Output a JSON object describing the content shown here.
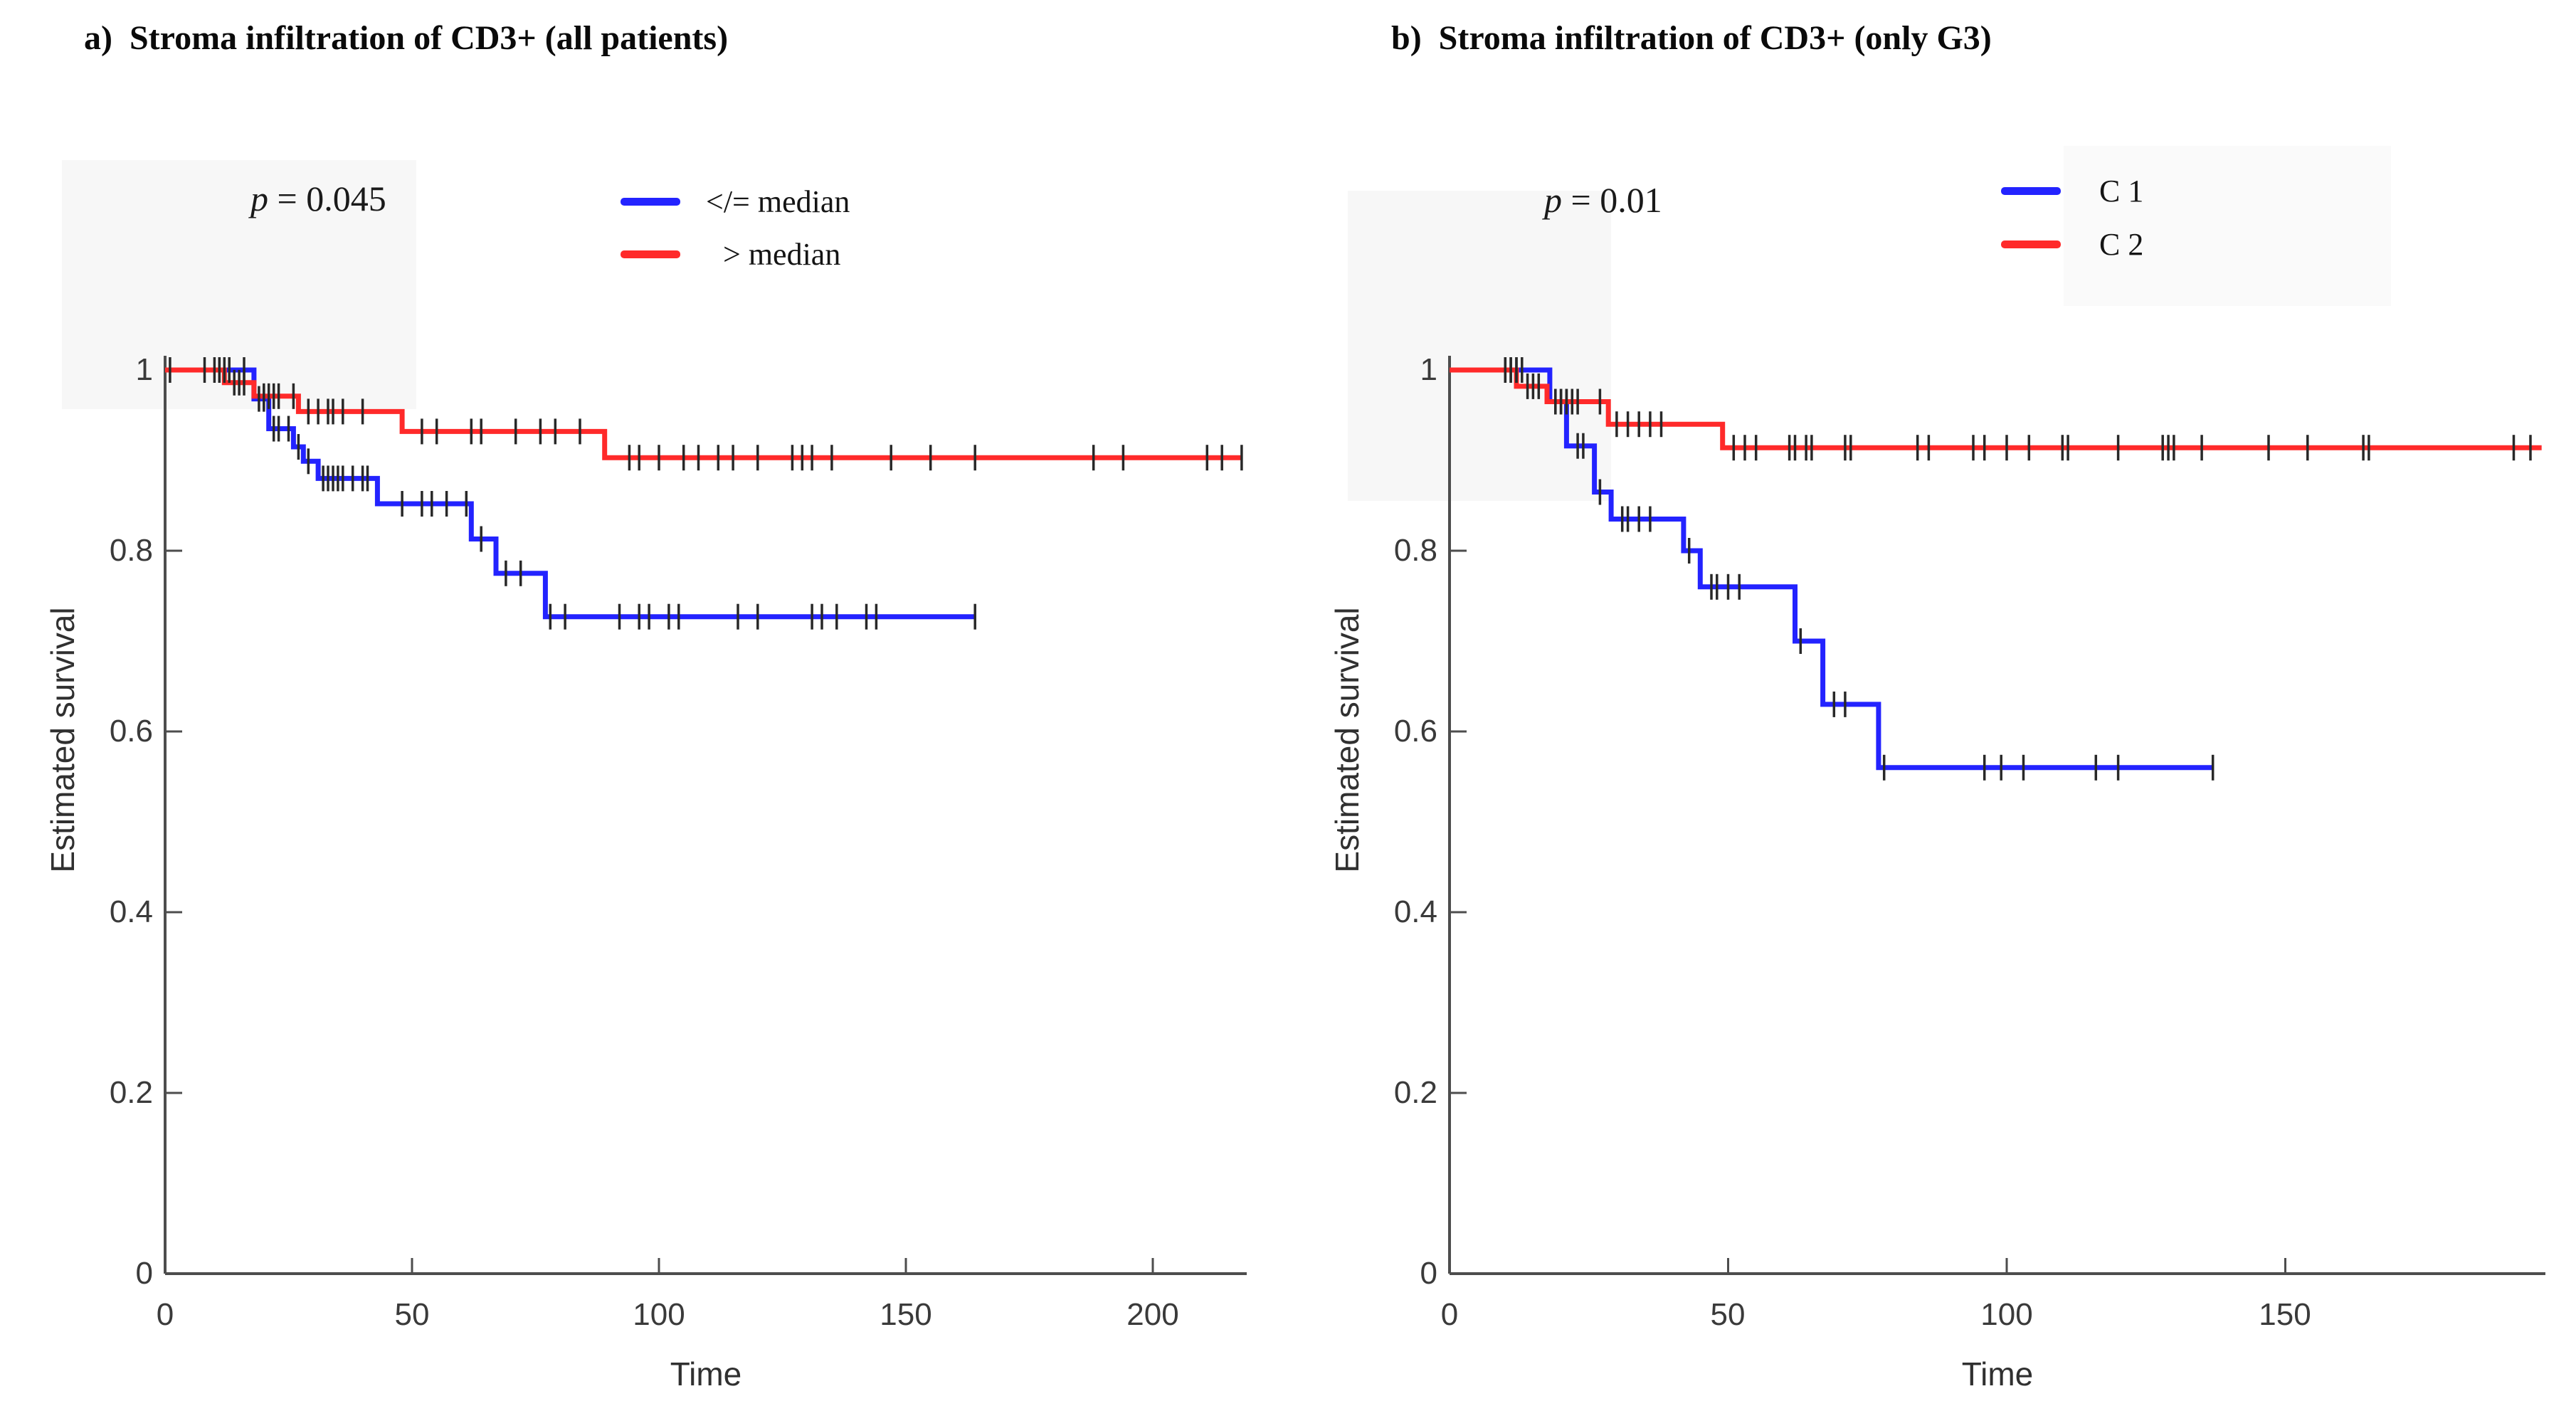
{
  "figure": {
    "background": "#ffffff",
    "p_prefix_symbol": "p"
  },
  "chart_data": [
    {
      "type": "line",
      "subtype": "kaplan-meier-step",
      "panel": "a",
      "title": "a)  Stroma infiltration of CD3+ (all patients)",
      "p_symbol": "p",
      "p_rest": " = 0.045",
      "xlabel": "Time",
      "ylabel": "Estimated survival",
      "xlim": [
        0,
        220
      ],
      "ylim": [
        0,
        1
      ],
      "xticks": [
        0,
        50,
        100,
        150,
        200
      ],
      "yticks": [
        0,
        0.2,
        0.4,
        0.6,
        0.8,
        1
      ],
      "grid": false,
      "legend_position": "above-plot-right",
      "series": [
        {
          "name": "</= median",
          "color": "#2323ff",
          "start": [
            0,
            1
          ],
          "drops": [
            [
              18,
              0.968
            ],
            [
              21,
              0.935
            ],
            [
              26,
              0.915
            ],
            [
              28,
              0.899
            ],
            [
              31,
              0.88
            ],
            [
              43,
              0.852
            ],
            [
              62,
              0.813
            ],
            [
              67,
              0.775
            ],
            [
              77,
              0.727
            ]
          ],
          "end_time": 164,
          "censor_marks": [
            [
              10,
              1
            ],
            [
              11,
              1
            ],
            [
              13,
              1
            ],
            [
              16,
              1
            ],
            [
              19,
              0.968
            ],
            [
              20,
              0.968
            ],
            [
              22,
              0.935
            ],
            [
              23,
              0.935
            ],
            [
              25,
              0.935
            ],
            [
              27,
              0.915
            ],
            [
              29,
              0.899
            ],
            [
              32,
              0.88
            ],
            [
              33,
              0.88
            ],
            [
              34,
              0.88
            ],
            [
              35,
              0.88
            ],
            [
              36,
              0.88
            ],
            [
              38,
              0.88
            ],
            [
              40,
              0.88
            ],
            [
              41,
              0.88
            ],
            [
              48,
              0.852
            ],
            [
              52,
              0.852
            ],
            [
              54,
              0.852
            ],
            [
              57,
              0.852
            ],
            [
              61,
              0.852
            ],
            [
              64,
              0.813
            ],
            [
              69,
              0.775
            ],
            [
              72,
              0.775
            ],
            [
              78,
              0.727
            ],
            [
              81,
              0.727
            ],
            [
              92,
              0.727
            ],
            [
              96,
              0.727
            ],
            [
              98,
              0.727
            ],
            [
              102,
              0.727
            ],
            [
              104,
              0.727
            ],
            [
              116,
              0.727
            ],
            [
              120,
              0.727
            ],
            [
              131,
              0.727
            ],
            [
              133,
              0.727
            ],
            [
              136,
              0.727
            ],
            [
              142,
              0.727
            ],
            [
              144,
              0.727
            ],
            [
              164,
              0.727
            ]
          ]
        },
        {
          "name": "> median",
          "color": "#ff2a2a",
          "start": [
            0,
            1
          ],
          "drops": [
            [
              12,
              0.986
            ],
            [
              18,
              0.971
            ],
            [
              27,
              0.954
            ],
            [
              48,
              0.932
            ],
            [
              89,
              0.903
            ]
          ],
          "end_time": 218,
          "censor_marks": [
            [
              1,
              1
            ],
            [
              8,
              1
            ],
            [
              11,
              1
            ],
            [
              12,
              1
            ],
            [
              14,
              0.986
            ],
            [
              15,
              0.986
            ],
            [
              16,
              0.986
            ],
            [
              20,
              0.971
            ],
            [
              21,
              0.971
            ],
            [
              22,
              0.971
            ],
            [
              23,
              0.971
            ],
            [
              26,
              0.971
            ],
            [
              29,
              0.954
            ],
            [
              31,
              0.954
            ],
            [
              33,
              0.954
            ],
            [
              34,
              0.954
            ],
            [
              36,
              0.954
            ],
            [
              40,
              0.954
            ],
            [
              52,
              0.932
            ],
            [
              55,
              0.932
            ],
            [
              62,
              0.932
            ],
            [
              64,
              0.932
            ],
            [
              71,
              0.932
            ],
            [
              76,
              0.932
            ],
            [
              79,
              0.932
            ],
            [
              84,
              0.932
            ],
            [
              94,
              0.903
            ],
            [
              96,
              0.903
            ],
            [
              100,
              0.903
            ],
            [
              105,
              0.903
            ],
            [
              108,
              0.903
            ],
            [
              112,
              0.903
            ],
            [
              115,
              0.903
            ],
            [
              120,
              0.903
            ],
            [
              127,
              0.903
            ],
            [
              129,
              0.903
            ],
            [
              131,
              0.903
            ],
            [
              135,
              0.903
            ],
            [
              147,
              0.903
            ],
            [
              155,
              0.903
            ],
            [
              164,
              0.903
            ],
            [
              188,
              0.903
            ],
            [
              194,
              0.903
            ],
            [
              211,
              0.903
            ],
            [
              214,
              0.903
            ],
            [
              218,
              0.903
            ]
          ]
        }
      ]
    },
    {
      "type": "line",
      "subtype": "kaplan-meier-step",
      "panel": "b",
      "title": "b)  Stroma infiltration of CD3+ (only G3)",
      "p_symbol": "p",
      "p_rest": " = 0.01",
      "xlabel": "Time",
      "ylabel": "Estimated survival",
      "xlim": [
        0,
        197
      ],
      "ylim": [
        0,
        1
      ],
      "xticks": [
        0,
        50,
        100,
        150
      ],
      "yticks": [
        0,
        0.2,
        0.4,
        0.6,
        0.8,
        1
      ],
      "grid": false,
      "legend_position": "above-plot-right",
      "series": [
        {
          "name": "C 1",
          "color": "#2323ff",
          "start": [
            0,
            1
          ],
          "drops": [
            [
              18,
              0.965
            ],
            [
              21,
              0.916
            ],
            [
              26,
              0.865
            ],
            [
              29,
              0.835
            ],
            [
              42,
              0.8
            ],
            [
              45,
              0.76
            ],
            [
              62,
              0.7
            ],
            [
              67,
              0.63
            ],
            [
              77,
              0.56
            ]
          ],
          "end_time": 137,
          "censor_marks": [
            [
              10,
              1
            ],
            [
              11,
              1
            ],
            [
              12,
              1
            ],
            [
              13,
              1
            ],
            [
              19,
              0.965
            ],
            [
              20,
              0.965
            ],
            [
              21,
              0.965
            ],
            [
              23,
              0.916
            ],
            [
              24,
              0.916
            ],
            [
              27,
              0.865
            ],
            [
              31,
              0.835
            ],
            [
              32,
              0.835
            ],
            [
              34,
              0.835
            ],
            [
              36,
              0.835
            ],
            [
              43,
              0.8
            ],
            [
              47,
              0.76
            ],
            [
              48,
              0.76
            ],
            [
              50,
              0.76
            ],
            [
              52,
              0.76
            ],
            [
              63,
              0.7
            ],
            [
              69,
              0.63
            ],
            [
              71,
              0.63
            ],
            [
              78,
              0.56
            ],
            [
              96,
              0.56
            ],
            [
              99,
              0.56
            ],
            [
              103,
              0.56
            ],
            [
              116,
              0.56
            ],
            [
              120,
              0.56
            ],
            [
              137,
              0.56
            ]
          ]
        },
        {
          "name": "C 2",
          "color": "#ff2a2a",
          "start": [
            0,
            1
          ],
          "drops": [
            [
              12,
              0.982
            ],
            [
              17.5,
              0.965
            ],
            [
              28.5,
              0.94
            ],
            [
              49,
              0.914
            ]
          ],
          "end_time": 196,
          "censor_marks": [
            [
              10,
              1
            ],
            [
              11,
              1
            ],
            [
              12,
              1
            ],
            [
              14,
              0.982
            ],
            [
              15,
              0.982
            ],
            [
              16,
              0.982
            ],
            [
              19,
              0.965
            ],
            [
              20,
              0.965
            ],
            [
              21,
              0.965
            ],
            [
              22,
              0.965
            ],
            [
              23,
              0.965
            ],
            [
              27,
              0.965
            ],
            [
              30,
              0.94
            ],
            [
              32,
              0.94
            ],
            [
              34,
              0.94
            ],
            [
              36,
              0.94
            ],
            [
              38,
              0.94
            ],
            [
              51,
              0.914
            ],
            [
              53,
              0.914
            ],
            [
              55,
              0.914
            ],
            [
              61,
              0.914
            ],
            [
              62,
              0.914
            ],
            [
              64,
              0.914
            ],
            [
              65,
              0.914
            ],
            [
              71,
              0.914
            ],
            [
              72,
              0.914
            ],
            [
              84,
              0.914
            ],
            [
              86,
              0.914
            ],
            [
              94,
              0.914
            ],
            [
              96,
              0.914
            ],
            [
              100,
              0.914
            ],
            [
              104,
              0.914
            ],
            [
              110,
              0.914
            ],
            [
              111,
              0.914
            ],
            [
              120,
              0.914
            ],
            [
              128,
              0.914
            ],
            [
              129,
              0.914
            ],
            [
              130,
              0.914
            ],
            [
              135,
              0.914
            ],
            [
              147,
              0.914
            ],
            [
              154,
              0.914
            ],
            [
              164,
              0.914
            ],
            [
              165,
              0.914
            ],
            [
              191,
              0.914
            ],
            [
              194,
              0.914
            ]
          ]
        }
      ]
    }
  ]
}
